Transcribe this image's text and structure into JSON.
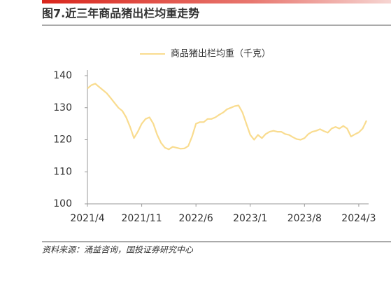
{
  "chart_data": {
    "type": "line",
    "title": "图7.近三年商品猪出栏均重走势",
    "source": "资料来源：涌益咨询，国投证券研究中心",
    "categories": [
      "2021/4",
      null,
      null,
      null,
      null,
      null,
      null,
      null,
      null,
      null,
      null,
      null,
      null,
      null,
      "2021/11",
      null,
      null,
      null,
      null,
      null,
      null,
      null,
      null,
      null,
      null,
      null,
      null,
      null,
      "2022/6",
      null,
      null,
      null,
      null,
      null,
      null,
      null,
      null,
      null,
      null,
      null,
      null,
      null,
      "2023/1",
      null,
      null,
      null,
      null,
      null,
      null,
      null,
      null,
      null,
      null,
      null,
      null,
      null,
      "2023/8",
      null,
      null,
      null,
      null,
      null,
      null,
      null,
      null,
      null,
      null,
      null,
      null,
      null,
      "2024/3",
      null,
      null
    ],
    "series": [
      {
        "name": "商品猪出栏均重（千克）",
        "color": "#f9dc8f",
        "values": [
          136,
          137,
          137.5,
          136.5,
          135.5,
          134.5,
          133,
          131.5,
          130,
          129,
          127,
          124,
          120.5,
          122.5,
          125,
          126.5,
          127,
          125,
          121.5,
          119,
          117.5,
          117,
          117.8,
          117.5,
          117.2,
          117.3,
          118,
          121,
          125,
          125.5,
          125.5,
          126.5,
          126.5,
          127,
          127.8,
          128.5,
          129.5,
          130,
          130.5,
          130.7,
          128.5,
          125,
          121.5,
          120,
          121.5,
          120.5,
          121.8,
          122.5,
          122.8,
          122.5,
          122.5,
          121.8,
          121.5,
          120.8,
          120.2,
          120,
          120.5,
          121.8,
          122.5,
          122.8,
          123.3,
          122.7,
          122.2,
          123.5,
          124,
          123.5,
          124.3,
          123.5,
          121,
          121.7,
          122.3,
          123.5,
          126
        ]
      }
    ],
    "ylim": [
      100,
      140
    ],
    "yticks": [
      100,
      110,
      120,
      130,
      140
    ]
  }
}
